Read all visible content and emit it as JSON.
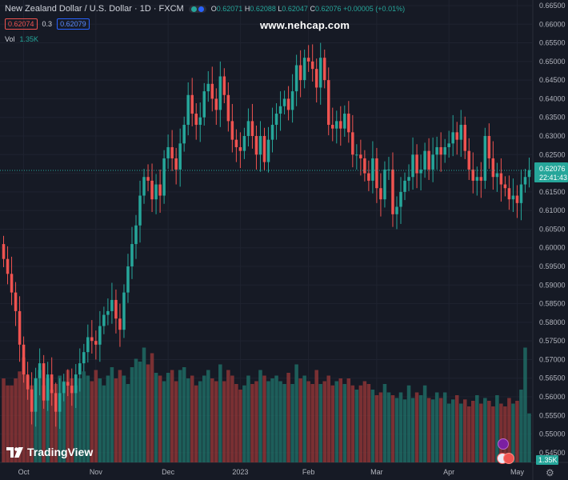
{
  "header": {
    "symbol": "New Zealand Dollar / U.S. Dollar · 1D · FXCM",
    "open_label": "O",
    "open": "0.62071",
    "high_label": "H",
    "high": "0.62088",
    "low_label": "L",
    "low": "0.62047",
    "close_label": "C",
    "close": "0.62076",
    "change": "+0.00005 (+0.01%)",
    "bid": "0.62074",
    "spread": "0.3",
    "ask": "0.62079",
    "vol_label": "Vol",
    "vol_value": "1.35K"
  },
  "watermark": "www.nehcap.com",
  "brand": "TradingView",
  "price_tag": {
    "price": "0.62076",
    "countdown": "22:41:43"
  },
  "volume_tag": "1.35K",
  "colors": {
    "up": "#26a69a",
    "down": "#ef5350",
    "background": "#161a25",
    "grid": "#1f2330",
    "axis_text": "#b2b5be"
  },
  "chart_data": {
    "type": "candlestick",
    "y_ticks": [
      "0.54500",
      "0.55000",
      "0.55500",
      "0.56000",
      "0.56500",
      "0.57000",
      "0.57500",
      "0.58000",
      "0.58500",
      "0.59000",
      "0.59500",
      "0.60000",
      "0.60500",
      "0.61000",
      "0.61500",
      "0.62000",
      "0.62500",
      "0.63000",
      "0.63500",
      "0.64000",
      "0.64500",
      "0.65000",
      "0.65500",
      "0.66000",
      "0.66500"
    ],
    "ylim": [
      0.5424,
      0.6665
    ],
    "x_ticks": [
      "Oct",
      "Nov",
      "Dec",
      "2023",
      "Feb",
      "Mar",
      "Apr",
      "May"
    ],
    "last_price": 0.62076,
    "closes": [
      0.597,
      0.593,
      0.588,
      0.583,
      0.574,
      0.566,
      0.562,
      0.556,
      0.565,
      0.569,
      0.559,
      0.566,
      0.561,
      0.556,
      0.561,
      0.564,
      0.563,
      0.561,
      0.566,
      0.569,
      0.572,
      0.576,
      0.575,
      0.574,
      0.579,
      0.582,
      0.583,
      0.586,
      0.581,
      0.578,
      0.588,
      0.595,
      0.601,
      0.606,
      0.614,
      0.619,
      0.618,
      0.613,
      0.617,
      0.614,
      0.624,
      0.627,
      0.624,
      0.621,
      0.628,
      0.633,
      0.641,
      0.636,
      0.633,
      0.635,
      0.642,
      0.644,
      0.64,
      0.637,
      0.646,
      0.641,
      0.634,
      0.629,
      0.627,
      0.626,
      0.63,
      0.634,
      0.63,
      0.625,
      0.63,
      0.623,
      0.629,
      0.633,
      0.636,
      0.638,
      0.64,
      0.637,
      0.642,
      0.649,
      0.645,
      0.651,
      0.65,
      0.648,
      0.643,
      0.651,
      0.645,
      0.633,
      0.632,
      0.634,
      0.632,
      0.636,
      0.631,
      0.625,
      0.625,
      0.624,
      0.62,
      0.618,
      0.624,
      0.616,
      0.613,
      0.621,
      0.621,
      0.609,
      0.611,
      0.615,
      0.618,
      0.619,
      0.625,
      0.62,
      0.621,
      0.626,
      0.621,
      0.625,
      0.627,
      0.625,
      0.627,
      0.628,
      0.631,
      0.629,
      0.633,
      0.626,
      0.621,
      0.618,
      0.619,
      0.618,
      0.63,
      0.624,
      0.619,
      0.62,
      0.617,
      0.616,
      0.613,
      0.614,
      0.612,
      0.617,
      0.619,
      0.6208
    ],
    "volumes": [
      0.6,
      0.55,
      0.55,
      0.6,
      0.65,
      0.75,
      0.62,
      0.55,
      0.6,
      0.66,
      0.55,
      0.6,
      0.52,
      0.56,
      0.62,
      0.58,
      0.66,
      0.6,
      0.55,
      0.6,
      0.65,
      0.62,
      0.58,
      0.66,
      0.6,
      0.55,
      0.62,
      0.68,
      0.6,
      0.66,
      0.62,
      0.56,
      0.68,
      0.74,
      0.72,
      0.82,
      0.7,
      0.78,
      0.64,
      0.62,
      0.58,
      0.64,
      0.66,
      0.58,
      0.66,
      0.68,
      0.6,
      0.62,
      0.55,
      0.58,
      0.62,
      0.66,
      0.6,
      0.58,
      0.7,
      0.58,
      0.66,
      0.62,
      0.56,
      0.52,
      0.55,
      0.62,
      0.56,
      0.58,
      0.66,
      0.62,
      0.58,
      0.6,
      0.62,
      0.58,
      0.56,
      0.64,
      0.56,
      0.7,
      0.6,
      0.62,
      0.58,
      0.56,
      0.66,
      0.56,
      0.58,
      0.62,
      0.55,
      0.58,
      0.6,
      0.56,
      0.6,
      0.55,
      0.52,
      0.55,
      0.58,
      0.56,
      0.52,
      0.48,
      0.5,
      0.56,
      0.5,
      0.48,
      0.46,
      0.5,
      0.45,
      0.55,
      0.46,
      0.5,
      0.48,
      0.55,
      0.46,
      0.45,
      0.5,
      0.46,
      0.5,
      0.42,
      0.45,
      0.48,
      0.42,
      0.45,
      0.4,
      0.44,
      0.48,
      0.42,
      0.46,
      0.44,
      0.4,
      0.48,
      0.42,
      0.4,
      0.46,
      0.42,
      0.44,
      0.52,
      0.82,
      0.35
    ]
  }
}
